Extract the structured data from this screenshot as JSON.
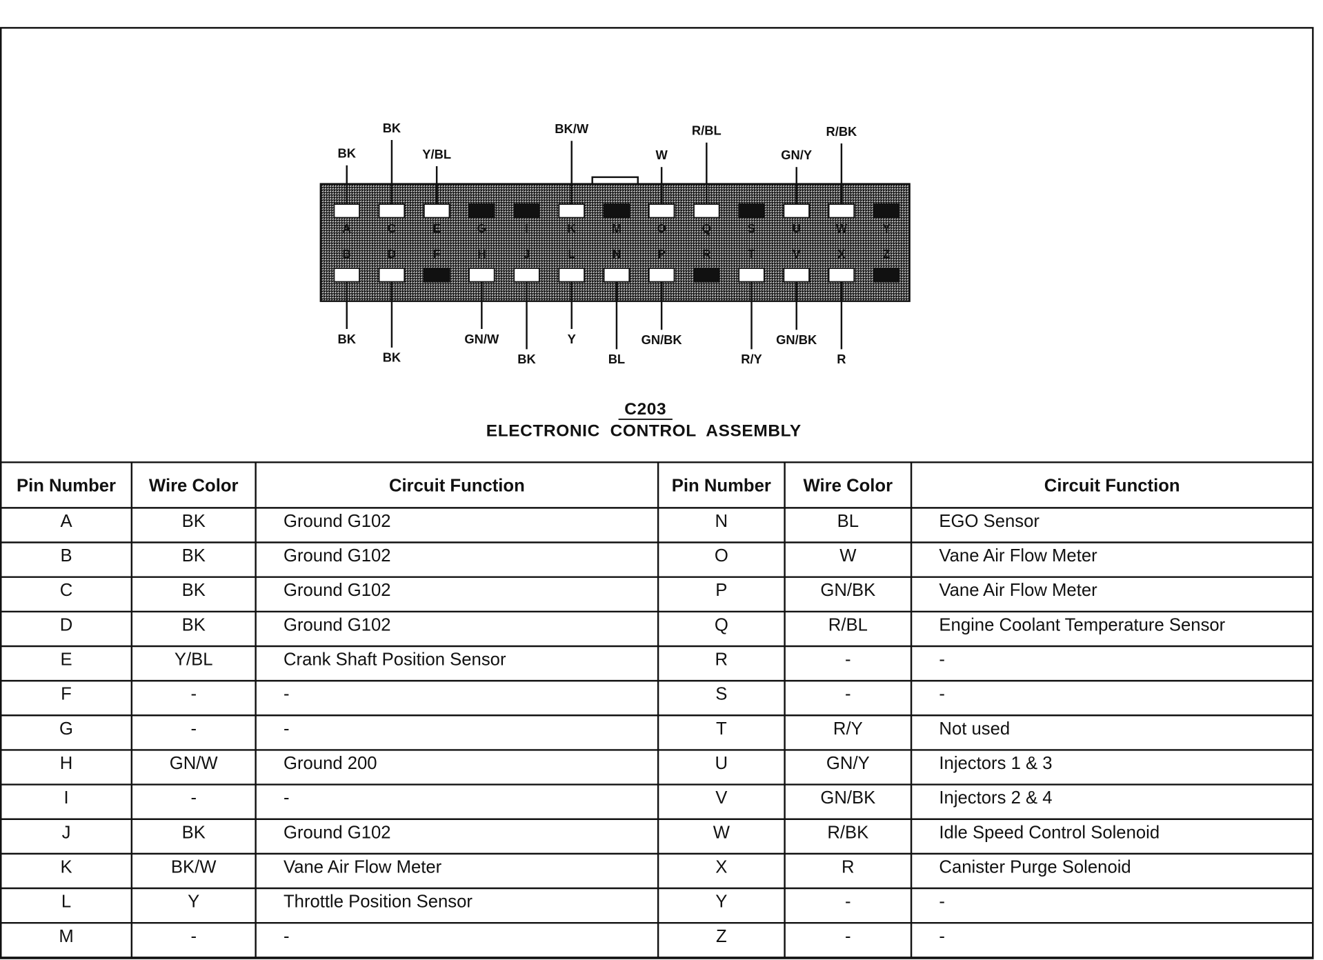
{
  "diagram": {
    "connector_id": "C203",
    "title": "ELECTRONIC  CONTROL  ASSEMBLY",
    "top_pins": [
      {
        "pin": "A",
        "wire": "BK"
      },
      {
        "pin": "C",
        "wire": "BK"
      },
      {
        "pin": "E",
        "wire": "Y/BL"
      },
      {
        "pin": "G",
        "wire": null
      },
      {
        "pin": "I",
        "wire": null
      },
      {
        "pin": "K",
        "wire": "BK/W"
      },
      {
        "pin": "M",
        "wire": null
      },
      {
        "pin": "O",
        "wire": "W"
      },
      {
        "pin": "Q",
        "wire": "R/BL"
      },
      {
        "pin": "S",
        "wire": null
      },
      {
        "pin": "U",
        "wire": "GN/Y"
      },
      {
        "pin": "W",
        "wire": "R/BK"
      },
      {
        "pin": "Y",
        "wire": null
      }
    ],
    "bottom_pins": [
      {
        "pin": "B",
        "wire": "BK"
      },
      {
        "pin": "D",
        "wire": "BK"
      },
      {
        "pin": "F",
        "wire": null
      },
      {
        "pin": "H",
        "wire": "GN/W"
      },
      {
        "pin": "J",
        "wire": "BK"
      },
      {
        "pin": "L",
        "wire": "Y"
      },
      {
        "pin": "N",
        "wire": "BL"
      },
      {
        "pin": "P",
        "wire": "GN/BK"
      },
      {
        "pin": "R",
        "wire": null
      },
      {
        "pin": "T",
        "wire": "R/Y"
      },
      {
        "pin": "V",
        "wire": "GN/BK"
      },
      {
        "pin": "X",
        "wire": "R"
      },
      {
        "pin": "Z",
        "wire": null
      }
    ]
  },
  "table": {
    "headers": [
      "Pin Number",
      "Wire Color",
      "Circuit Function",
      "Pin Number",
      "Wire Color",
      "Circuit Function"
    ],
    "rows": [
      [
        "A",
        "BK",
        "Ground G102",
        "N",
        "BL",
        "EGO Sensor"
      ],
      [
        "B",
        "BK",
        "Ground G102",
        "O",
        "W",
        "Vane Air Flow Meter"
      ],
      [
        "C",
        "BK",
        "Ground G102",
        "P",
        "GN/BK",
        "Vane Air Flow Meter"
      ],
      [
        "D",
        "BK",
        "Ground G102",
        "Q",
        "R/BL",
        "Engine Coolant Temperature Sensor"
      ],
      [
        "E",
        "Y/BL",
        "Crank Shaft Position Sensor",
        "R",
        "-",
        "-"
      ],
      [
        "F",
        "-",
        "-",
        "S",
        "-",
        "-"
      ],
      [
        "G",
        "-",
        "-",
        "T",
        "R/Y",
        "Not used"
      ],
      [
        "H",
        "GN/W",
        "Ground 200",
        "U",
        "GN/Y",
        "Injectors 1 & 3"
      ],
      [
        "I",
        "-",
        "-",
        "V",
        "GN/BK",
        "Injectors 2 & 4"
      ],
      [
        "J",
        "BK",
        "Ground G102",
        "W",
        "R/BK",
        "Idle Speed Control Solenoid"
      ],
      [
        "K",
        "BK/W",
        "Vane Air Flow Meter",
        "X",
        "R",
        "Canister Purge Solenoid"
      ],
      [
        "L",
        "Y",
        "Throttle Position Sensor",
        "Y",
        "-",
        "-"
      ],
      [
        "M",
        "-",
        "-",
        "Z",
        "-",
        "-"
      ]
    ]
  }
}
